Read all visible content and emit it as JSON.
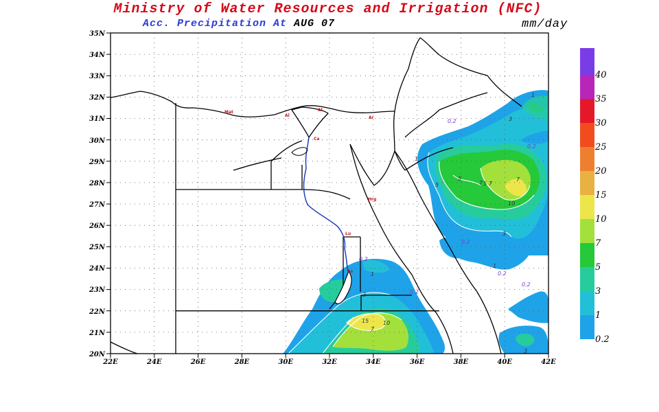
{
  "header": {
    "title": "Ministry of Water Resources and Irrigation (NFC)",
    "subtitle_prefix": "Acc. Precipitation  At",
    "subtitle_date": "AUG 07",
    "units": "mm/day"
  },
  "colors": {
    "title": "#d40b1a",
    "subtitle_prefix": "#2a3bd6",
    "subtitle_date": "#000000",
    "river": "#1f3fbf",
    "borders": "#000000",
    "grid": "#555555"
  },
  "map": {
    "lon_range": [
      22,
      42
    ],
    "lat_range": [
      20,
      35
    ],
    "lon_ticks": [
      "22E",
      "24E",
      "26E",
      "28E",
      "30E",
      "32E",
      "34E",
      "36E",
      "38E",
      "40E",
      "42E"
    ],
    "lat_ticks": [
      "20N",
      "21N",
      "22N",
      "23N",
      "24N",
      "25N",
      "26N",
      "27N",
      "28N",
      "29N",
      "30N",
      "31N",
      "32N",
      "33N",
      "34N",
      "35N"
    ],
    "grid": "dotted"
  },
  "colorbar": {
    "labels": [
      "0.2",
      "1",
      "3",
      "5",
      "7",
      "10",
      "15",
      "20",
      "25",
      "30",
      "35",
      "40"
    ],
    "colors": [
      "#1fa3e8",
      "#22bfd9",
      "#27cc9c",
      "#25c93a",
      "#a3e03c",
      "#ede64a",
      "#e8b142",
      "#ef7f30",
      "#f24c1e",
      "#e5182a",
      "#b726b8",
      "#7a3ce6"
    ]
  },
  "contour_labels": [
    "1",
    "3",
    "0.2",
    "0.2",
    "1",
    "5",
    "5",
    "7",
    "5",
    "7",
    "7",
    "10",
    "3",
    "0.2",
    "1",
    "0.2",
    "0.2",
    "0.2",
    "1",
    "3",
    "15",
    "10",
    "7",
    "3",
    "0.2"
  ],
  "city_labels": [
    "Mat",
    "Al",
    "Al",
    "Ca",
    "Ar",
    "Hrg",
    "Lu",
    "As"
  ]
}
